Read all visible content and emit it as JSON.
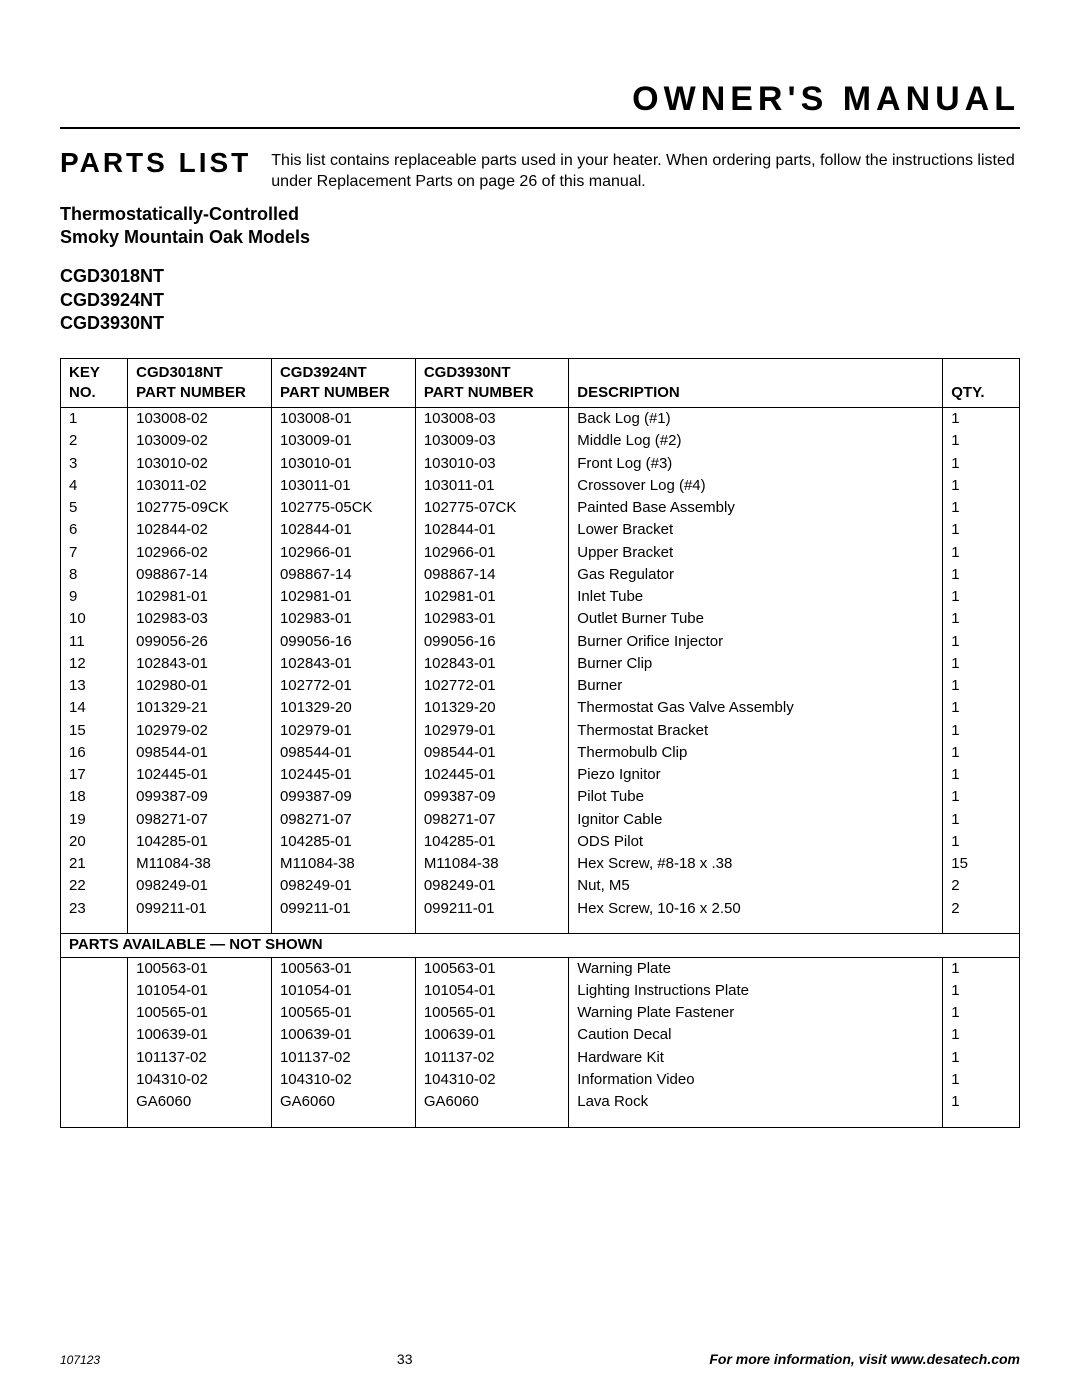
{
  "header": {
    "title": "OWNER'S MANUAL"
  },
  "section": {
    "title": "PARTS LIST",
    "intro": "This list contains replaceable parts used in your heater. When ordering parts, follow the instructions listed under Replacement Parts on page 26 of this manual.",
    "subheading_line1": "Thermostatically-Controlled",
    "subheading_line2": "Smoky Mountain Oak Models",
    "models": [
      "CGD3018NT",
      "CGD3924NT",
      "CGD3930NT"
    ]
  },
  "table": {
    "columns": {
      "key_no_l1": "KEY",
      "key_no_l2": "NO.",
      "m1_l1": "CGD3018NT",
      "m1_l2": "PART NUMBER",
      "m2_l1": "CGD3924NT",
      "m2_l2": "PART NUMBER",
      "m3_l1": "CGD3930NT",
      "m3_l2": "PART NUMBER",
      "desc": "DESCRIPTION",
      "qty": "QTY."
    },
    "rows": [
      {
        "key": "1",
        "p1": "103008-02",
        "p2": "103008-01",
        "p3": "103008-03",
        "desc": "Back Log (#1)",
        "qty": "1"
      },
      {
        "key": "2",
        "p1": "103009-02",
        "p2": "103009-01",
        "p3": "103009-03",
        "desc": "Middle Log (#2)",
        "qty": "1"
      },
      {
        "key": "3",
        "p1": "103010-02",
        "p2": "103010-01",
        "p3": "103010-03",
        "desc": "Front Log (#3)",
        "qty": "1"
      },
      {
        "key": "4",
        "p1": "103011-02",
        "p2": "103011-01",
        "p3": "103011-01",
        "desc": "Crossover Log (#4)",
        "qty": "1"
      },
      {
        "key": "5",
        "p1": "102775-09CK",
        "p2": "102775-05CK",
        "p3": "102775-07CK",
        "desc": "Painted Base Assembly",
        "qty": "1"
      },
      {
        "key": "6",
        "p1": "102844-02",
        "p2": "102844-01",
        "p3": "102844-01",
        "desc": "Lower Bracket",
        "qty": "1"
      },
      {
        "key": "7",
        "p1": "102966-02",
        "p2": "102966-01",
        "p3": "102966-01",
        "desc": "Upper Bracket",
        "qty": "1"
      },
      {
        "key": "8",
        "p1": "098867-14",
        "p2": "098867-14",
        "p3": "098867-14",
        "desc": "Gas Regulator",
        "qty": "1"
      },
      {
        "key": "9",
        "p1": "102981-01",
        "p2": "102981-01",
        "p3": "102981-01",
        "desc": "Inlet Tube",
        "qty": "1"
      },
      {
        "key": "10",
        "p1": "102983-03",
        "p2": "102983-01",
        "p3": "102983-01",
        "desc": "Outlet Burner Tube",
        "qty": "1"
      },
      {
        "key": "11",
        "p1": "099056-26",
        "p2": "099056-16",
        "p3": "099056-16",
        "desc": "Burner Orifice Injector",
        "qty": "1"
      },
      {
        "key": "12",
        "p1": "102843-01",
        "p2": "102843-01",
        "p3": "102843-01",
        "desc": "Burner Clip",
        "qty": "1"
      },
      {
        "key": "13",
        "p1": "102980-01",
        "p2": "102772-01",
        "p3": "102772-01",
        "desc": "Burner",
        "qty": "1"
      },
      {
        "key": "14",
        "p1": "101329-21",
        "p2": "101329-20",
        "p3": "101329-20",
        "desc": "Thermostat Gas Valve Assembly",
        "qty": "1"
      },
      {
        "key": "15",
        "p1": "102979-02",
        "p2": "102979-01",
        "p3": "102979-01",
        "desc": "Thermostat Bracket",
        "qty": "1"
      },
      {
        "key": "16",
        "p1": "098544-01",
        "p2": "098544-01",
        "p3": "098544-01",
        "desc": "Thermobulb Clip",
        "qty": "1"
      },
      {
        "key": "17",
        "p1": "102445-01",
        "p2": "102445-01",
        "p3": "102445-01",
        "desc": "Piezo Ignitor",
        "qty": "1"
      },
      {
        "key": "18",
        "p1": "099387-09",
        "p2": "099387-09",
        "p3": "099387-09",
        "desc": "Pilot Tube",
        "qty": "1"
      },
      {
        "key": "19",
        "p1": "098271-07",
        "p2": "098271-07",
        "p3": "098271-07",
        "desc": "Ignitor Cable",
        "qty": "1"
      },
      {
        "key": "20",
        "p1": "104285-01",
        "p2": "104285-01",
        "p3": "104285-01",
        "desc": "ODS Pilot",
        "qty": "1"
      },
      {
        "key": "21",
        "p1": "M11084-38",
        "p2": "M11084-38",
        "p3": "M11084-38",
        "desc": "Hex Screw, #8-18 x .38",
        "qty": "15"
      },
      {
        "key": "22",
        "p1": "098249-01",
        "p2": "098249-01",
        "p3": "098249-01",
        "desc": "Nut, M5",
        "qty": "2"
      },
      {
        "key": "23",
        "p1": "099211-01",
        "p2": "099211-01",
        "p3": "099211-01",
        "desc": "Hex Screw, 10-16 x 2.50",
        "qty": "2"
      }
    ],
    "section2_title": "PARTS AVAILABLE — NOT SHOWN",
    "rows2": [
      {
        "key": "",
        "p1": "100563-01",
        "p2": "100563-01",
        "p3": "100563-01",
        "desc": "Warning Plate",
        "qty": "1"
      },
      {
        "key": "",
        "p1": "101054-01",
        "p2": "101054-01",
        "p3": "101054-01",
        "desc": "Lighting Instructions Plate",
        "qty": "1"
      },
      {
        "key": "",
        "p1": "100565-01",
        "p2": "100565-01",
        "p3": "100565-01",
        "desc": "Warning Plate Fastener",
        "qty": "1"
      },
      {
        "key": "",
        "p1": "100639-01",
        "p2": "100639-01",
        "p3": "100639-01",
        "desc": "Caution Decal",
        "qty": "1"
      },
      {
        "key": "",
        "p1": "101137-02",
        "p2": "101137-02",
        "p3": "101137-02",
        "desc": "Hardware Kit",
        "qty": "1"
      },
      {
        "key": "",
        "p1": "104310-02",
        "p2": "104310-02",
        "p3": "104310-02",
        "desc": "Information Video",
        "qty": "1"
      },
      {
        "key": "",
        "p1": "GA6060",
        "p2": "GA6060",
        "p3": "GA6060",
        "desc": "Lava Rock",
        "qty": "1"
      }
    ]
  },
  "footer": {
    "doc_id": "107123",
    "page_no": "33",
    "info": "For more information, visit www.desatech.com"
  },
  "style": {
    "page_bg": "#ffffff",
    "text_color": "#000000",
    "border_color": "#000000",
    "col_widths_pct": [
      7,
      15,
      15,
      15,
      40,
      8
    ]
  }
}
